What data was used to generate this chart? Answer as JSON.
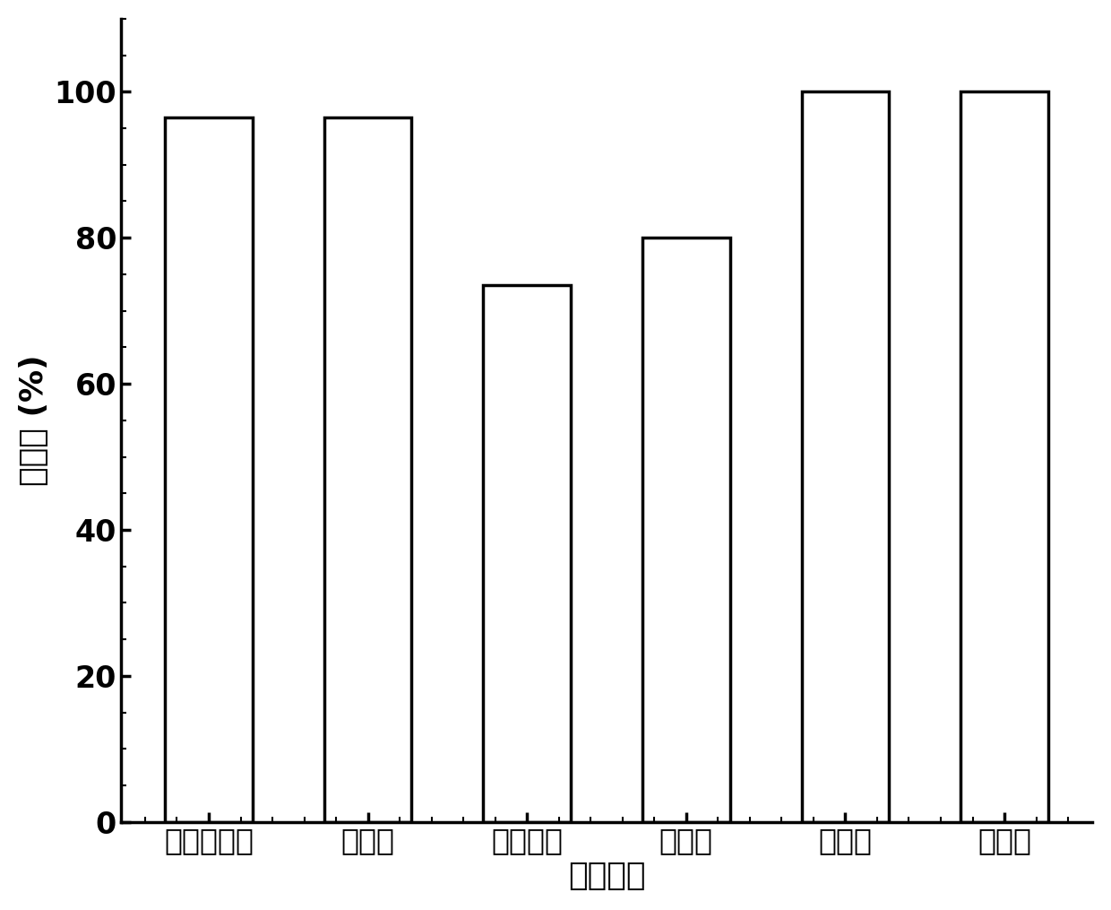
{
  "categories": [
    "甲基硫菌灵",
    "多菌灵",
    "烯酰吗啉",
    "噁霜灵",
    "咪鲜胺",
    "腐霉利"
  ],
  "values": [
    96.5,
    96.5,
    73.5,
    80.0,
    100.0,
    100.0
  ],
  "bar_color": "#ffffff",
  "bar_edgecolor": "#000000",
  "bar_linewidth": 2.5,
  "ylabel": "降解率 (%)",
  "xlabel": "农药名称",
  "ylim": [
    0,
    110
  ],
  "yticks": [
    0,
    20,
    40,
    60,
    80,
    100
  ],
  "background_color": "#ffffff",
  "ylabel_fontsize": 26,
  "xlabel_fontsize": 26,
  "tick_fontsize": 24,
  "bar_width": 0.55,
  "spine_linewidth": 2.5,
  "font_weight": "bold"
}
